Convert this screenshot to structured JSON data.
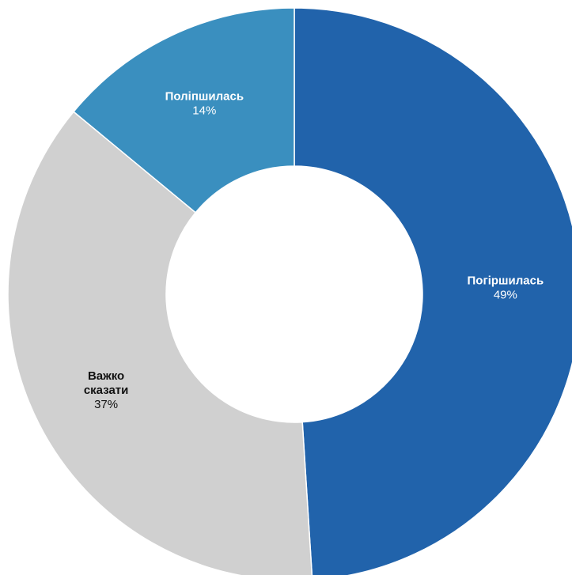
{
  "chart_data": {
    "type": "pie",
    "title": "",
    "donut": true,
    "unit": "%",
    "categories": [
      "Погіршилась",
      "Важко сказати",
      "Поліпшилась"
    ],
    "values": [
      49,
      37,
      14
    ],
    "slices": [
      {
        "label_lines": [
          "Погіршилась"
        ],
        "value": 49,
        "value_text": "49%",
        "color": "#2163AB",
        "text_color": "#ffffff"
      },
      {
        "label_lines": [
          "Важко",
          "сказати"
        ],
        "value": 37,
        "value_text": "37%",
        "color": "#D0D0D0",
        "text_color": "#111111"
      },
      {
        "label_lines": [
          "Поліпшилась"
        ],
        "value": 14,
        "value_text": "14%",
        "color": "#3A8FBF",
        "text_color": "#ffffff"
      }
    ],
    "legend": "none",
    "grid": false
  }
}
